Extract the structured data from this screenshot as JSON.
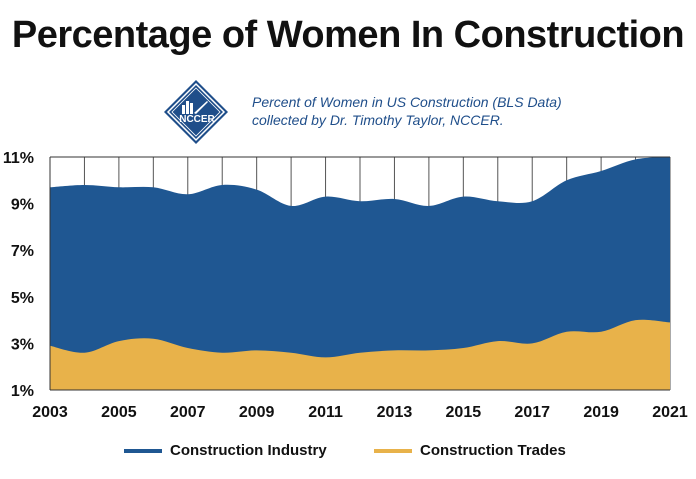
{
  "title": "Percentage of Women In Construction",
  "subtitle_lines": [
    "Percent of Women in US Construction (BLS Data)",
    "collected by Dr. Timothy Taylor, NCCER."
  ],
  "logo": {
    "text": "NCCER",
    "icon": "nccer-diamond-logo"
  },
  "colors": {
    "industry": "#1f5792",
    "trades": "#e8b24a",
    "grid": "#555555",
    "logo": "#1f4e8a"
  },
  "chart_data": {
    "type": "area",
    "x": [
      2003,
      2004,
      2005,
      2006,
      2007,
      2008,
      2009,
      2010,
      2011,
      2012,
      2013,
      2014,
      2015,
      2016,
      2017,
      2018,
      2019,
      2020,
      2021
    ],
    "series": [
      {
        "name": "Construction Industry",
        "values": [
          9.7,
          9.8,
          9.7,
          9.7,
          9.4,
          9.8,
          9.6,
          8.9,
          9.3,
          9.1,
          9.2,
          8.9,
          9.3,
          9.1,
          9.1,
          10.0,
          10.4,
          10.9,
          11.0
        ]
      },
      {
        "name": "Construction Trades",
        "values": [
          2.9,
          2.6,
          3.1,
          3.2,
          2.8,
          2.6,
          2.7,
          2.6,
          2.4,
          2.6,
          2.7,
          2.7,
          2.8,
          3.1,
          3.0,
          3.5,
          3.5,
          4.0,
          3.9
        ]
      }
    ],
    "yticks": [
      1,
      3,
      5,
      7,
      9,
      11
    ],
    "ytick_labels": [
      "1%",
      "3%",
      "5%",
      "7%",
      "9%",
      "11%"
    ],
    "xticks": [
      2003,
      2005,
      2007,
      2009,
      2011,
      2013,
      2015,
      2017,
      2019,
      2021
    ],
    "ylim": [
      1,
      11
    ],
    "xlim": [
      2003,
      2021
    ],
    "grid": "vertical",
    "legend_position": "bottom"
  }
}
